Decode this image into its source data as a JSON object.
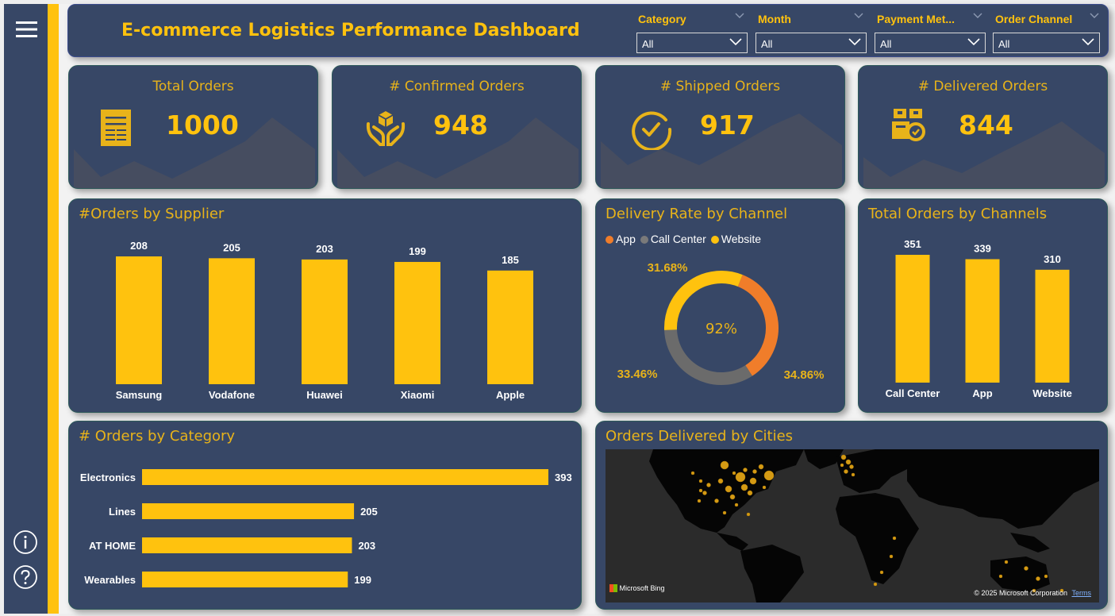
{
  "app": {
    "title": "E-commerce Logistics Performance Dashboard",
    "colors": {
      "accent": "#FFC20E",
      "panel": "#374766",
      "app_slice": "#F07D2A",
      "callcenter_slice": "#6b6b6b",
      "website_slice": "#FFC20E"
    }
  },
  "filters": [
    {
      "label": "Category",
      "value": "All"
    },
    {
      "label": "Month",
      "value": "All"
    },
    {
      "label": "Payment Met...",
      "value": "All"
    },
    {
      "label": "Order Channel",
      "value": "All"
    }
  ],
  "kpis": [
    {
      "title": "Total Orders",
      "value": "1000",
      "icon": "document-icon"
    },
    {
      "title": "# Confirmed Orders",
      "value": "948",
      "icon": "hands-box-icon"
    },
    {
      "title": "# Shipped Orders",
      "value": "917",
      "icon": "check-circle-icon"
    },
    {
      "title": "# Delivered Orders",
      "value": "844",
      "icon": "delivered-packages-icon"
    }
  ],
  "sidebar": {
    "menu_icon": "hamburger-menu-icon",
    "info_icon": "info-icon",
    "help_icon": "help-icon"
  },
  "chart_data": [
    {
      "type": "bar",
      "title": "#Orders by Supplier",
      "categories": [
        "Samsung",
        "Vodafone",
        "Huawei",
        "Xiaomi",
        "Apple"
      ],
      "values": [
        208,
        205,
        203,
        199,
        185
      ],
      "value_labels": [
        "208",
        "205",
        "203",
        "199",
        "185"
      ]
    },
    {
      "type": "pie",
      "title": "Delivery Rate by Channel",
      "legend": [
        "App",
        "Call Center",
        "Website"
      ],
      "legend_position": "top-left",
      "center_label": "92%",
      "slices": [
        {
          "name": "App",
          "value": 34.86,
          "label": "34.86%"
        },
        {
          "name": "Call Center",
          "value": 33.46,
          "label": "33.46%"
        },
        {
          "name": "Website",
          "value": 31.68,
          "label": "31.68%"
        }
      ]
    },
    {
      "type": "bar",
      "title": "Total Orders by Channels",
      "categories": [
        "Call Center",
        "App",
        "Website"
      ],
      "values": [
        351,
        339,
        310
      ],
      "value_labels": [
        "351",
        "339",
        "310"
      ]
    },
    {
      "type": "bar",
      "orientation": "horizontal",
      "title": "# Orders by Category",
      "categories": [
        "Electronics",
        "Lines",
        "AT HOME",
        "Wearables"
      ],
      "values": [
        393,
        205,
        203,
        199
      ],
      "value_labels": [
        "393",
        "205",
        "203",
        "199"
      ]
    }
  ],
  "map": {
    "title": "Orders Delivered by Cities",
    "bing_label": "Microsoft Bing",
    "copyright": "© 2025 Microsoft Corporation",
    "terms": "Terms"
  }
}
